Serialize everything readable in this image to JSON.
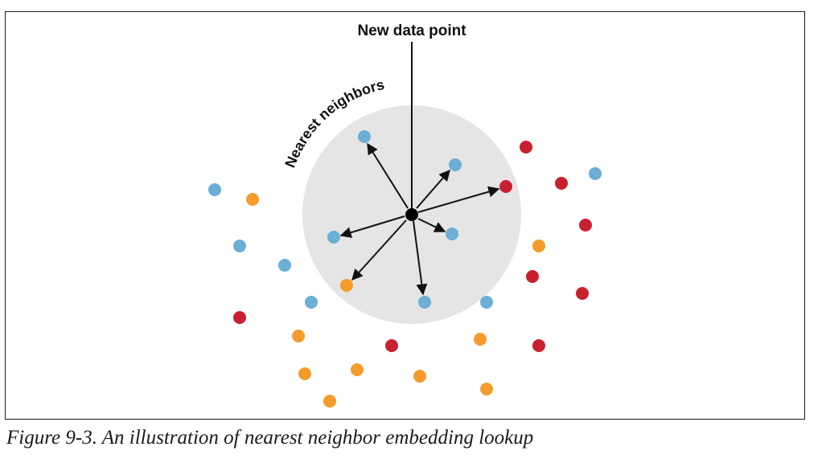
{
  "diagram": {
    "new_point_label": "New data point",
    "neighbors_label": "Nearest neighbors"
  },
  "caption": "Figure 9-3. An illustration of nearest neighbor embedding lookup",
  "colors": {
    "blue": "#6baed6",
    "orange": "#f39c2b",
    "red": "#c8202f",
    "circle_fill": "#e5e5e5",
    "query_point": "#000000"
  }
}
